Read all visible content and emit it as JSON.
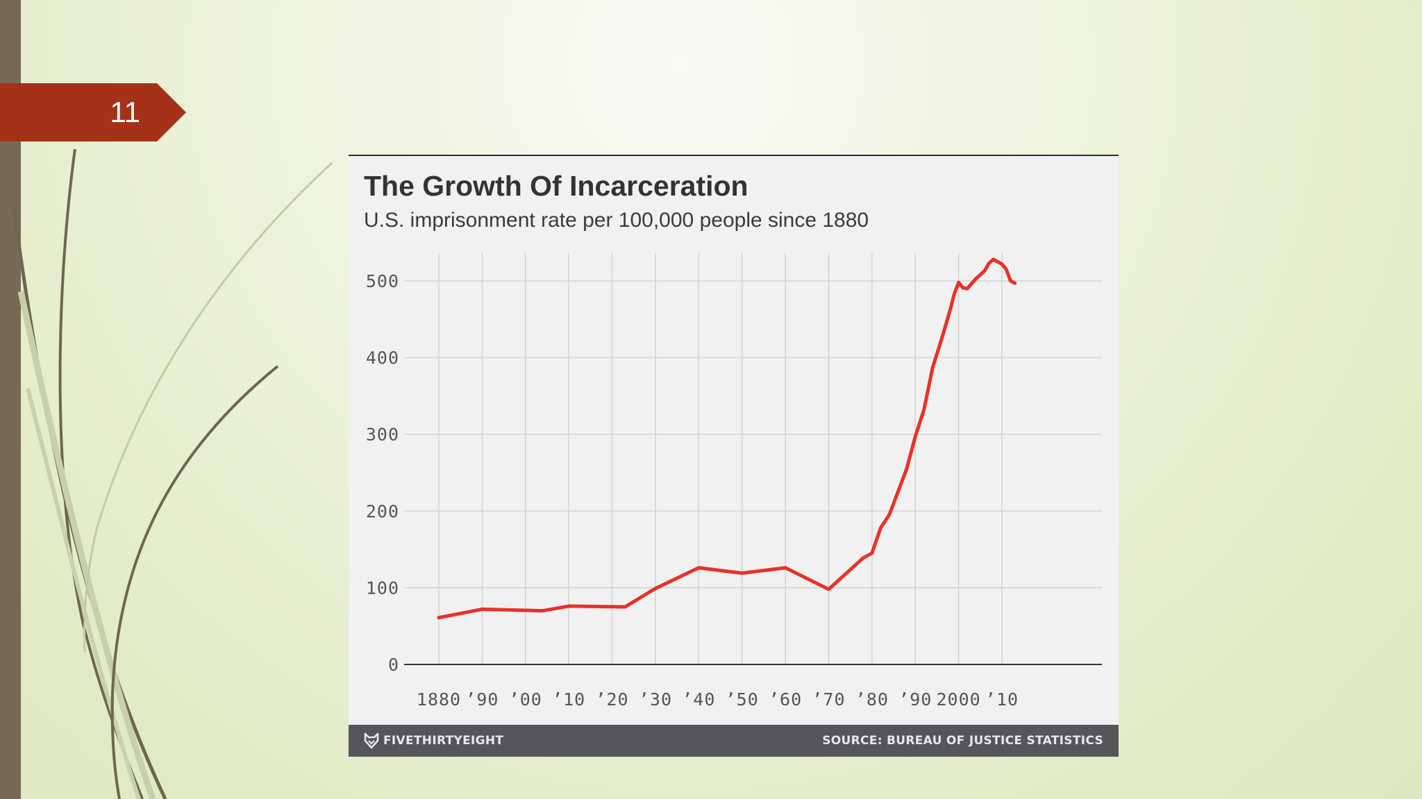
{
  "slide": {
    "number": "11",
    "colors": {
      "tab": "#a33218",
      "left_bar": "#766a57",
      "background": "#e6eed1"
    }
  },
  "chart_data": {
    "type": "line",
    "title": "The Growth Of Incarceration",
    "subtitle": "U.S. imprisonment rate per 100,000 people since 1880",
    "xlabel": "",
    "ylabel": "",
    "xlim": [
      1880,
      2020
    ],
    "ylim": [
      0,
      500
    ],
    "grid": true,
    "x_tick_values": [
      1880,
      1890,
      1900,
      1910,
      1920,
      1930,
      1940,
      1950,
      1960,
      1970,
      1980,
      1990,
      2000,
      2010
    ],
    "x_tick_labels": [
      "1880",
      "’90",
      "’00",
      "’10",
      "’20",
      "’30",
      "’40",
      "’50",
      "’60",
      "’70",
      "’80",
      "’90",
      "2000",
      "’10"
    ],
    "y_ticks": [
      0,
      100,
      200,
      300,
      400,
      500
    ],
    "series": [
      {
        "color": "#e8312a",
        "x": [
          1880,
          1890,
          1904,
          1910,
          1923,
          1930,
          1940,
          1950,
          1960,
          1970,
          1978,
          1980,
          1982,
          1984,
          1988,
          1990,
          1992,
          1994,
          1996,
          1998,
          1999,
          2000,
          2001,
          2002,
          2004,
          2006,
          2007,
          2008,
          2010,
          2011,
          2012,
          2013
        ],
        "y": [
          61,
          72,
          70,
          76,
          75,
          99,
          126,
          119,
          126,
          98,
          139,
          145,
          178,
          195,
          255,
          297,
          332,
          387,
          423,
          461,
          483,
          498,
          491,
          490,
          503,
          513,
          523,
          528,
          522,
          515,
          500,
          497
        ]
      }
    ],
    "footer": {
      "brand": "FIVETHIRTYEIGHT",
      "source": "SOURCE: BUREAU OF JUSTICE STATISTICS",
      "brand_icon": "fox-logo-icon"
    }
  }
}
